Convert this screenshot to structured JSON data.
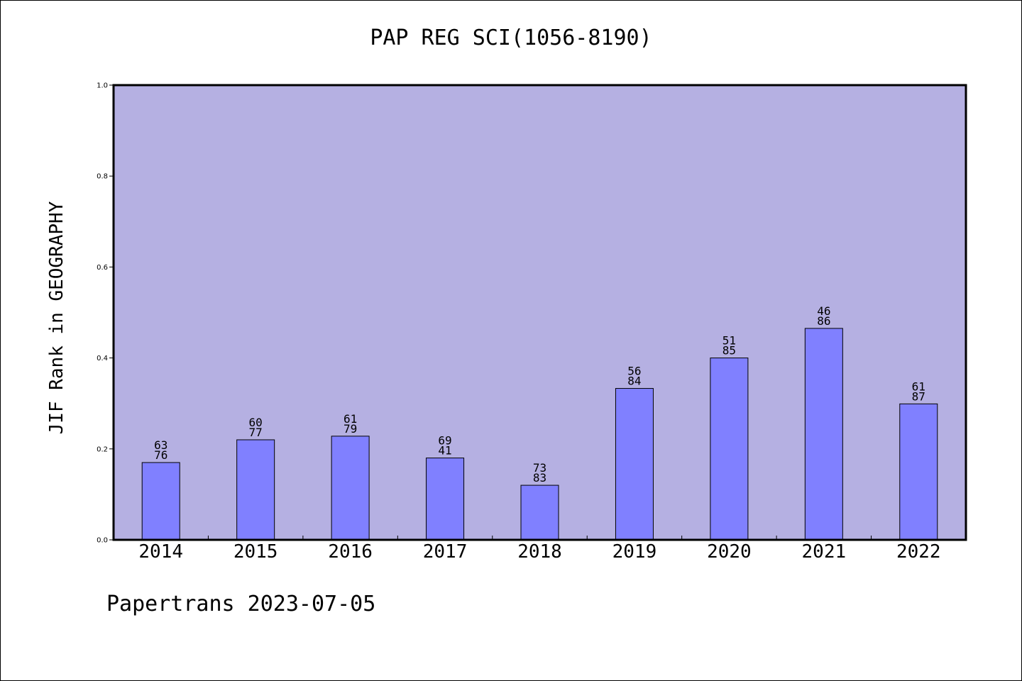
{
  "chart_data": {
    "type": "bar",
    "title": "PAP REG SCI(1056-8190)",
    "xlabel": "",
    "ylabel": "JIF Rank in GEOGRAPHY",
    "categories": [
      "2014",
      "2015",
      "2016",
      "2017",
      "2018",
      "2019",
      "2020",
      "2021",
      "2022"
    ],
    "values": [
      0.17,
      0.22,
      0.228,
      0.18,
      0.12,
      0.333,
      0.4,
      0.465,
      0.299
    ],
    "labels_top": [
      "63",
      "60",
      "61",
      "69",
      "73",
      "56",
      "51",
      "46",
      "61"
    ],
    "labels_bottom": [
      "76",
      "77",
      "79",
      "41",
      "83",
      "84",
      "85",
      "86",
      "87"
    ],
    "ylim": [
      0,
      1.0
    ],
    "yticks": [
      "0.0",
      "0.2",
      "0.4",
      "0.6",
      "0.8",
      "1.0"
    ],
    "grid": false,
    "colors": {
      "plot_background": "#b5b0e2",
      "bar_fill": "#8080ff",
      "bar_edge": "#000000"
    }
  },
  "footer": "Papertrans 2023-07-05"
}
